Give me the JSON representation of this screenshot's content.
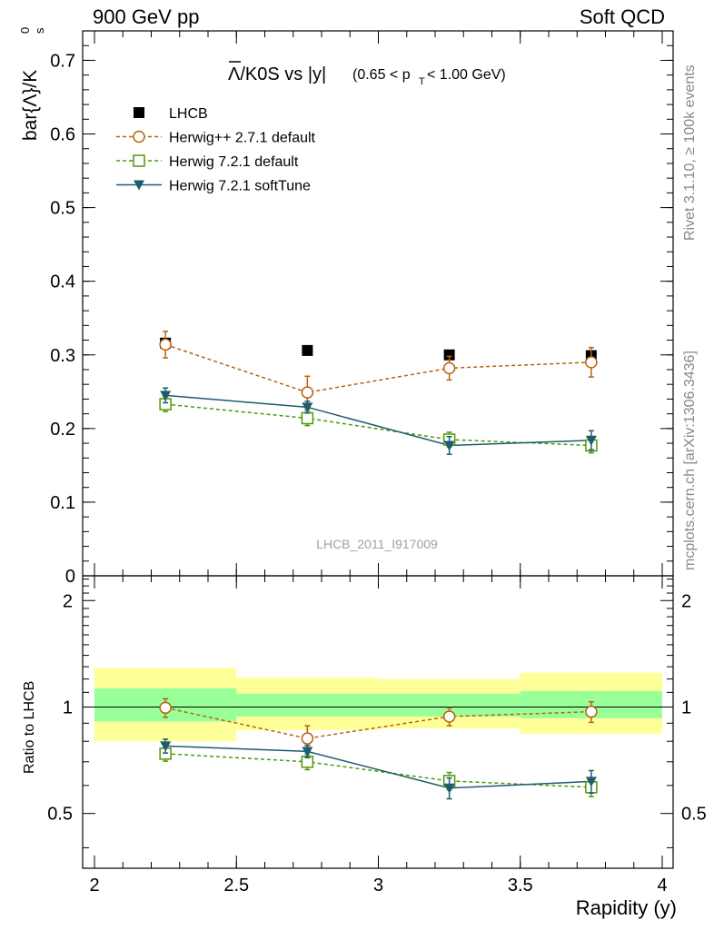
{
  "header": {
    "left": "900 GeV pp",
    "right": "Soft QCD"
  },
  "side_text": {
    "rivet": "Rivet 3.1.10, ≥ 100k events",
    "mcplots": "mcplots.cern.ch [arXiv:1306.3436]"
  },
  "watermark": "LHCB_2011_I917009",
  "colors": {
    "lhcb": "#000000",
    "herwigpp": "#b8620f",
    "herwig721": "#4e9a06",
    "softtune": "#1f5b70",
    "band_inner": "#99ff99",
    "band_outer": "#ffff99"
  },
  "chart_data": [
    {
      "type": "scatter",
      "panel": "main",
      "title_main": "Λ/K0S vs |y|",
      "title_sub": "(0.65 < p",
      "title_sub_index": "T",
      "title_sub_tail": " < 1.00 GeV)",
      "ylabel": "bar{Λ}/K",
      "ylabel_sup": "0",
      "ylabel_sub": "s",
      "xlim": [
        2,
        4
      ],
      "ylim": [
        0,
        0.74
      ],
      "xticks": [
        "2",
        "2.5",
        "3",
        "3.5",
        "4"
      ],
      "yticks": [
        "0",
        "0.1",
        "0.2",
        "0.3",
        "0.4",
        "0.5",
        "0.6",
        "0.7"
      ],
      "x": [
        2.25,
        2.75,
        3.25,
        3.75
      ],
      "series": [
        {
          "name": "LHCB",
          "values": [
            0.316,
            0.306,
            0.3,
            0.299
          ],
          "err": [
            0.004,
            0.004,
            0.004,
            0.004
          ],
          "style": "data"
        },
        {
          "name": "Herwig++ 2.7.1 default",
          "values": [
            0.314,
            0.249,
            0.282,
            0.29
          ],
          "err": [
            0.018,
            0.022,
            0.016,
            0.02
          ],
          "style": "herwigpp"
        },
        {
          "name": "Herwig 7.2.1 default",
          "values": [
            0.233,
            0.214,
            0.185,
            0.177
          ],
          "err": [
            0.01,
            0.01,
            0.01,
            0.01
          ],
          "style": "herwig721"
        },
        {
          "name": "Herwig 7.2.1 softTune",
          "values": [
            0.245,
            0.229,
            0.177,
            0.184
          ],
          "err": [
            0.01,
            0.008,
            0.012,
            0.013
          ],
          "style": "softtune"
        }
      ]
    },
    {
      "type": "scatter",
      "panel": "ratio",
      "ylabel": "Ratio to LHCB",
      "xlabel": "Rapidity (y)",
      "xlim": [
        2,
        4
      ],
      "ylim": [
        0.35,
        2.35
      ],
      "scale": "log",
      "yticks": [
        "0.5",
        "1",
        "2"
      ],
      "xticks": [
        "2",
        "2.5",
        "3",
        "3.5",
        "4"
      ],
      "x": [
        2.25,
        2.75,
        3.25,
        3.75
      ],
      "bands": {
        "edges": [
          2.0,
          2.5,
          3.0,
          3.5,
          4.0
        ],
        "inner": [
          [
            0.91,
            1.13
          ],
          [
            0.94,
            1.09
          ],
          [
            0.94,
            1.09
          ],
          [
            0.93,
            1.11
          ]
        ],
        "outer": [
          [
            0.8,
            1.29
          ],
          [
            0.86,
            1.21
          ],
          [
            0.87,
            1.2
          ],
          [
            0.84,
            1.25
          ]
        ]
      },
      "series": [
        {
          "name": "Herwig++ 2.7.1 default",
          "values": [
            0.995,
            0.815,
            0.94,
            0.97
          ],
          "err": [
            0.06,
            0.07,
            0.055,
            0.065
          ],
          "style": "herwigpp"
        },
        {
          "name": "Herwig 7.2.1 default",
          "values": [
            0.738,
            0.7,
            0.618,
            0.593
          ],
          "err": [
            0.035,
            0.035,
            0.035,
            0.035
          ],
          "style": "herwig721"
        },
        {
          "name": "Herwig 7.2.1 softTune",
          "values": [
            0.776,
            0.749,
            0.59,
            0.616
          ],
          "err": [
            0.035,
            0.03,
            0.04,
            0.045
          ],
          "style": "softtune"
        }
      ]
    }
  ]
}
